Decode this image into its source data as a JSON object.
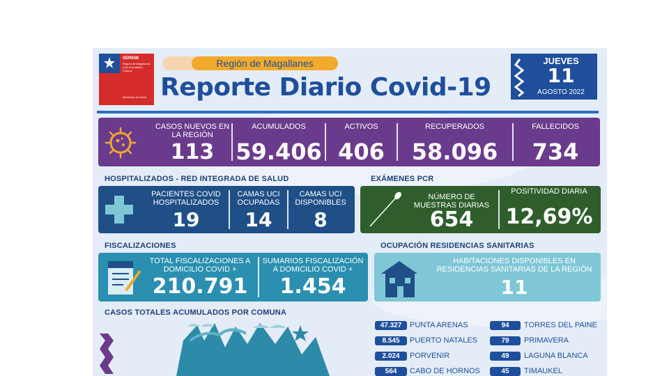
{
  "header": {
    "logo_line1": "SEREMI",
    "logo_line2": "Región de Magallanes y de la Antártica Chilena",
    "logo_line3": "Ministerio de Salud",
    "region": "Región de Magallanes",
    "title": "Reporte Diario Covid-19",
    "date": {
      "weekday": "JUEVES",
      "day": "11",
      "month_year": "AGOSTO 2022"
    }
  },
  "summary": {
    "nuevos": {
      "label": "CASOS NUEVOS EN LA REGIÓN",
      "value": "113"
    },
    "acumulados": {
      "label": "ACUMULADOS",
      "value": "59.406"
    },
    "activos": {
      "label": "ACTIVOS",
      "value": "406"
    },
    "recuperados": {
      "label": "RECUPERADOS",
      "value": "58.096"
    },
    "fallecidos": {
      "label": "FALLECIDOS",
      "value": "734"
    }
  },
  "hospital": {
    "title": "HOSPITALIZADOS - RED INTEGRADA DE SALUD",
    "pacientes": {
      "label": "PACIENTES COVID HOSPITALIZADOS",
      "value": "19"
    },
    "ocupadas": {
      "label": "CAMAS UCI OCUPADAS",
      "value": "14"
    },
    "disponibles": {
      "label": "CAMAS UCI DISPONIBLES",
      "value": "8"
    }
  },
  "pcr": {
    "title": "EXÁMENES PCR",
    "muestras": {
      "label": "NÚMERO DE MUESTRAS DIARIAS",
      "value": "654"
    },
    "positividad": {
      "label": "POSITIVIDAD DIARIA",
      "value": "12,69%"
    }
  },
  "fiscal": {
    "title": "FISCALIZACIONES",
    "total": {
      "label": "TOTAL FISCALIZACIONES A DOMICILIO COVID +",
      "value": "210.791"
    },
    "sumarios": {
      "label": "SUMARIOS FISCALIZACIÓN A DOMICILIO COVID +",
      "value": "1.454"
    }
  },
  "residencias": {
    "title": "OCUPACIÓN RESIDENCIAS SANITARIAS",
    "label": "HABITACIONES DISPONIBLES EN RESIDENCIAS SANITARIAS DE LA REGIÓN",
    "value": "11"
  },
  "comunas": {
    "title": "CASOS TOTALES ACUMULADOS POR COMUNA",
    "left": [
      {
        "value": "47.327",
        "name": "PUNTA ARENAS"
      },
      {
        "value": "8.545",
        "name": "PUERTO NATALES"
      },
      {
        "value": "2.024",
        "name": "PORVENIR"
      },
      {
        "value": "564",
        "name": "CABO DE HORNOS"
      }
    ],
    "right": [
      {
        "value": "94",
        "name": "TORRES DEL PAINE"
      },
      {
        "value": "79",
        "name": "PRIMAVERA"
      },
      {
        "value": "49",
        "name": "LAGUNA BLANCA"
      },
      {
        "value": "45",
        "name": "TIMAUKEL"
      }
    ]
  },
  "colors": {
    "purple": "#6a3b8c",
    "navy": "#1f4f86",
    "green": "#2f5e2c",
    "teal": "#2a8fb0",
    "light_teal": "#7fc7d6",
    "title_blue": "#1f4f9c",
    "orange": "#f3a92b"
  }
}
